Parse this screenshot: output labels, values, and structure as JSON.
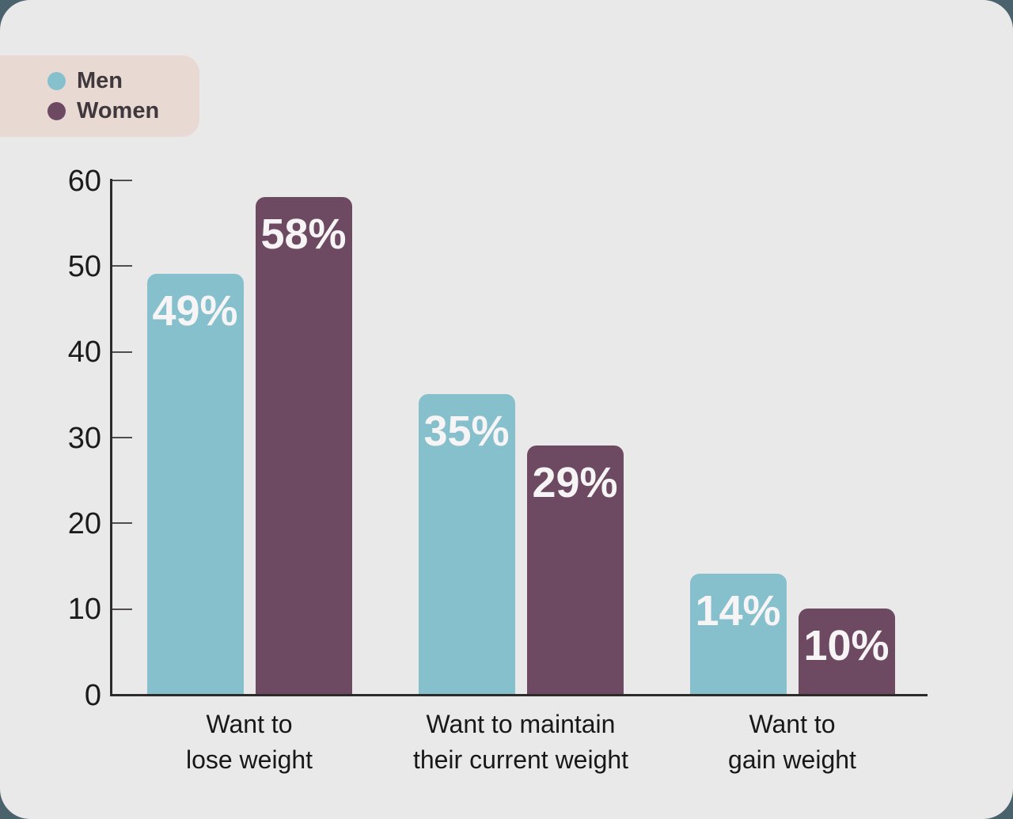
{
  "page": {
    "outer_background": "#4a626b",
    "card_background": "#eae9e9"
  },
  "legend": {
    "background": "#e8d9d3",
    "items": [
      {
        "label": "Men",
        "color": "#86c0cc"
      },
      {
        "label": "Women",
        "color": "#6d4a61"
      }
    ]
  },
  "chart_data": {
    "type": "bar",
    "title": "",
    "xlabel": "",
    "ylabel": "",
    "categories": [
      "Want to\nlose weight",
      "Want to maintain\ntheir current weight",
      "Want to\ngain weight"
    ],
    "series": [
      {
        "name": "Men",
        "color": "#86c0cc",
        "values": [
          49,
          35,
          14
        ],
        "labels": [
          "49%",
          "35%",
          "14%"
        ]
      },
      {
        "name": "Women",
        "color": "#6d4a61",
        "values": [
          58,
          29,
          10
        ],
        "labels": [
          "58%",
          "29%",
          "10%"
        ]
      }
    ],
    "ylim": [
      0,
      60
    ],
    "yticks": [
      0,
      10,
      20,
      30,
      40,
      50,
      60
    ],
    "grid": false,
    "legend_position": "top-left",
    "bar_label_color": "#f6f4f5"
  }
}
